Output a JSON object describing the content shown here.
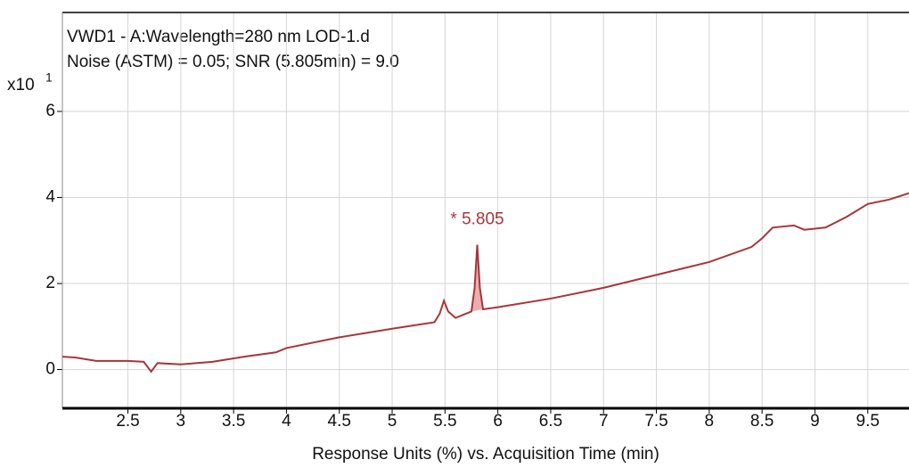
{
  "chart_data": {
    "type": "line",
    "title_lines": [
      "VWD1 - A:Wavelength=280 nm LOD-1.d",
      "Noise (ASTM) = 0.05; SNR (5.805min) = 9.0"
    ],
    "x_label": "Response Units (%) vs. Acquisition Time (min)",
    "y_multiplier": "x10",
    "y_exponent": "1",
    "x": [
      1.88,
      2.0,
      2.2,
      2.5,
      2.65,
      2.72,
      2.78,
      3.0,
      3.3,
      3.6,
      3.9,
      4.0,
      4.5,
      5.0,
      5.4,
      5.45,
      5.49,
      5.53,
      5.6,
      5.7,
      5.75,
      5.78,
      5.805,
      5.83,
      5.86,
      6.0,
      6.5,
      7.0,
      7.5,
      8.0,
      8.4,
      8.5,
      8.6,
      8.8,
      8.9,
      9.1,
      9.3,
      9.5,
      9.7,
      9.89
    ],
    "series": [
      {
        "name": "VWD1 - A",
        "color": "#a8353a",
        "values": [
          0.3,
          0.28,
          0.2,
          0.2,
          0.18,
          -0.05,
          0.15,
          0.12,
          0.18,
          0.3,
          0.4,
          0.5,
          0.75,
          0.95,
          1.1,
          1.3,
          1.6,
          1.35,
          1.2,
          1.3,
          1.35,
          1.9,
          2.9,
          1.9,
          1.4,
          1.45,
          1.65,
          1.9,
          2.2,
          2.5,
          2.85,
          3.05,
          3.3,
          3.35,
          3.25,
          3.3,
          3.55,
          3.85,
          3.95,
          4.1
        ]
      }
    ],
    "shaded_range": [
      5.75,
      5.86
    ],
    "shade_color": "#e9aeb0",
    "annotation": {
      "text": "* 5.805",
      "x": 5.805
    },
    "xlim": [
      1.88,
      9.89
    ],
    "ylim": [
      -0.9,
      8.3
    ],
    "xticks": [
      2.5,
      3,
      3.5,
      4,
      4.5,
      5,
      5.5,
      6,
      6.5,
      7,
      7.5,
      8,
      8.5,
      9,
      9.5
    ],
    "yticks": [
      0,
      2,
      4,
      6
    ],
    "grid": true
  }
}
